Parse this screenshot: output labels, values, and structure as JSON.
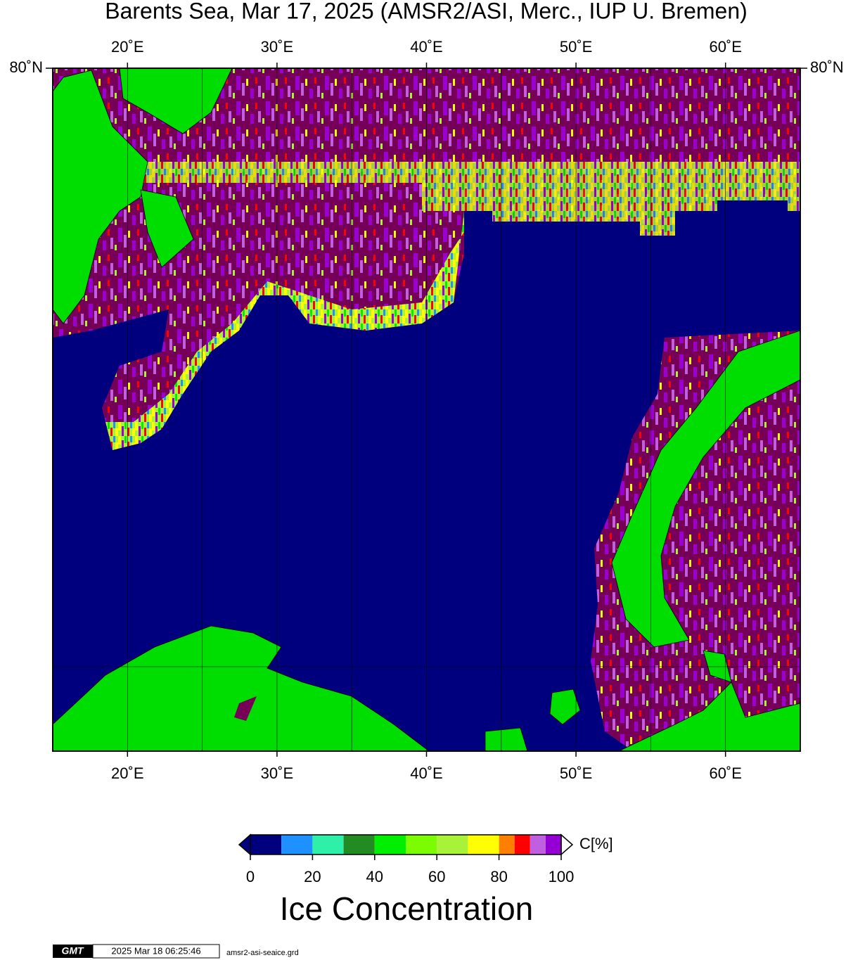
{
  "title": "Barents Sea, Mar 17, 2025 (AMSR2/ASI, Merc., IUP U. Bremen)",
  "map": {
    "xlim": [
      15,
      65
    ],
    "xticks": [
      {
        "value": 20,
        "label": "20˚E"
      },
      {
        "value": 30,
        "label": "30˚E"
      },
      {
        "value": 40,
        "label": "40˚E"
      },
      {
        "value": 50,
        "label": "50˚E"
      },
      {
        "value": 60,
        "label": "60˚E"
      }
    ],
    "yticks": [
      {
        "value": 80,
        "label": "80˚N"
      }
    ]
  },
  "colorbar": {
    "bins": [
      0,
      10,
      20,
      30,
      40,
      50,
      60,
      70,
      80,
      85,
      90,
      95,
      100
    ],
    "colors": [
      "#00007f",
      "#1e90ff",
      "#2ef0a8",
      "#228b22",
      "#00ee00",
      "#7cfc00",
      "#a8f23a",
      "#ffff00",
      "#ff7f00",
      "#ff0000",
      "#c060e0",
      "#9400d3"
    ],
    "ticks": [
      0,
      20,
      40,
      60,
      80,
      100
    ],
    "unit": "C[%]",
    "title": "Ice Concentration"
  },
  "footer": {
    "logo": "GMT",
    "timestamp": "2025 Mar 18 06:25:46",
    "file": "amsr2-asi-seaice.grd"
  }
}
